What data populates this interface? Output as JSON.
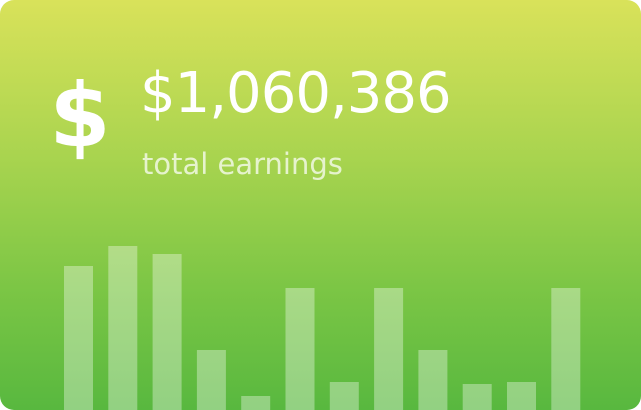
{
  "card": {
    "icon": "dollar-sign-icon",
    "icon_glyph": "$",
    "amount": "$1,060,386",
    "caption": "total earnings",
    "gradient_top": "#d9e25a",
    "gradient_bottom": "#58b83f"
  },
  "chart_data": {
    "type": "bar",
    "values": [
      72,
      82,
      78,
      30,
      7,
      61,
      14,
      61,
      30,
      13,
      14,
      61
    ],
    "ylim": [
      0,
      100
    ],
    "grid": false,
    "axes": false
  }
}
